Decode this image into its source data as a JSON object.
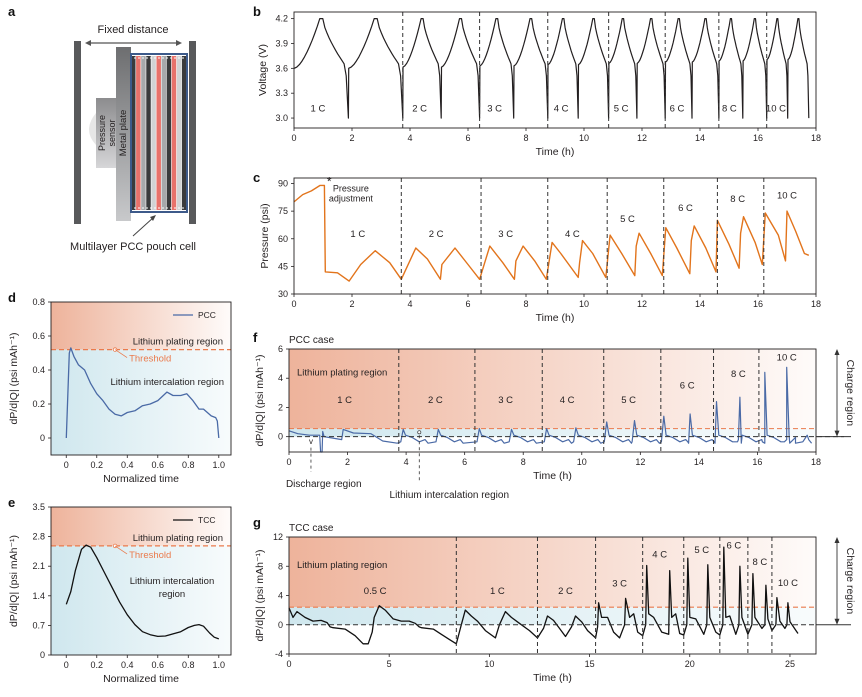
{
  "figure": {
    "panel_labels": [
      "a",
      "b",
      "c",
      "d",
      "e",
      "f",
      "g"
    ],
    "colors": {
      "pcc_line": "#4a6aa6",
      "tcc_line": "#111111",
      "pressure_line": "#e2741c",
      "threshold": "#ea7a4c",
      "plating_fill": "#eeb39b",
      "intercalation_fill": "#cfe7ee",
      "dashed_divider": "#333333"
    }
  },
  "schematic": {
    "title": "Fixed distance",
    "sensor_label_1": "Pressure",
    "sensor_label_2": "sensor",
    "plate_label": "Metal plate",
    "cell_label": "Multilayer PCC pouch cell"
  },
  "chart_data": [
    {
      "id": "b",
      "type": "line",
      "title": "",
      "xlabel": "Time (h)",
      "ylabel": "Voltage (V)",
      "xlim": [
        0,
        18
      ],
      "ylim": [
        2.88,
        4.28
      ],
      "xticks": [
        0,
        2,
        4,
        6,
        8,
        10,
        12,
        14,
        16,
        18
      ],
      "yticks": [
        3.0,
        3.3,
        3.6,
        3.9,
        4.2
      ],
      "ytick_labels": [
        "3.0",
        "3.3",
        "3.6",
        "3.9",
        "4.2"
      ],
      "segment_boundaries": [
        0,
        3.75,
        6.4,
        8.75,
        10.85,
        12.8,
        14.65,
        16.3,
        17.75
      ],
      "rate_labels": [
        "1 C",
        "2 C",
        "3 C",
        "4 C",
        "5 C",
        "6 C",
        "8 C",
        "10 C"
      ],
      "series": [
        {
          "name": "Voltage",
          "v_min": 3.0,
          "v_max": 4.2,
          "v_start": 3.6,
          "cycles_per_rate": 2
        }
      ]
    },
    {
      "id": "c",
      "type": "line",
      "xlabel": "Time (h)",
      "ylabel": "Pressure (psi)",
      "xlim": [
        0,
        18
      ],
      "ylim": [
        30,
        93
      ],
      "xticks": [
        0,
        2,
        4,
        6,
        8,
        10,
        12,
        14,
        16,
        18
      ],
      "yticks": [
        30,
        45,
        60,
        75,
        90
      ],
      "annotation": {
        "marker": "*",
        "line1": "Pressure",
        "line2": "adjustment",
        "x": 1.1,
        "y": 90
      },
      "segment_boundaries": [
        3.7,
        6.45,
        8.75,
        10.8,
        12.75,
        14.6,
        16.2
      ],
      "rate_labels": [
        "1 C",
        "2 C",
        "3 C",
        "4 C",
        "5 C",
        "6 C",
        "8 C",
        "10 C"
      ],
      "rate_label_positions": [
        [
          2.2,
          61
        ],
        [
          4.9,
          61
        ],
        [
          7.3,
          61
        ],
        [
          9.6,
          61
        ],
        [
          11.5,
          69
        ],
        [
          13.5,
          75
        ],
        [
          15.3,
          80
        ],
        [
          17.0,
          82
        ]
      ],
      "series": [
        {
          "name": "Pressure",
          "x": [
            0,
            0.3,
            0.6,
            0.9,
            1.05,
            1.08,
            1.1,
            1.5,
            1.9,
            2.3,
            2.8,
            3.3,
            3.7,
            4.2,
            4.6,
            5.05,
            5.1,
            5.55,
            6.0,
            6.4,
            6.75,
            7.2,
            7.6,
            7.65,
            7.9,
            8.3,
            8.7,
            8.9,
            9.2,
            9.8,
            9.85,
            9.95,
            10.3,
            10.75,
            10.9,
            11.3,
            11.75,
            11.8,
            11.9,
            12.3,
            12.7,
            12.82,
            13.2,
            13.65,
            13.7,
            13.8,
            14.2,
            14.55,
            14.6,
            15.0,
            15.35,
            15.4,
            15.5,
            15.9,
            16.15,
            16.25,
            16.7,
            16.95,
            17.0,
            17.3,
            17.6,
            17.75
          ],
          "y": [
            80,
            84,
            86,
            89,
            89,
            42,
            42,
            41.5,
            37,
            46,
            53.5,
            47,
            38,
            55,
            49,
            38,
            46,
            55,
            46,
            38,
            56,
            47,
            38,
            48,
            56,
            48,
            38,
            58,
            52,
            39,
            47,
            59,
            52,
            39,
            62,
            52,
            40,
            56,
            63,
            52,
            40,
            66,
            55,
            41,
            59,
            67,
            55,
            42,
            70,
            57,
            44,
            63,
            72,
            58,
            46,
            74,
            62,
            48,
            75,
            64,
            52,
            51
          ]
        }
      ]
    },
    {
      "id": "d",
      "type": "line",
      "xlabel": "Normalized time",
      "ylabel": "dP/d|Q| (psi mAh⁻¹)",
      "xlim": [
        -0.1,
        1.08
      ],
      "ylim": [
        -0.1,
        0.8
      ],
      "xticks": [
        0,
        0.2,
        0.4,
        0.6,
        0.8,
        1.0
      ],
      "xtick_labels": [
        "0",
        "0.2",
        "0.4",
        "0.6",
        "0.8",
        "1.0"
      ],
      "yticks": [
        0,
        0.2,
        0.4,
        0.6,
        0.8
      ],
      "ytick_labels": [
        "0",
        "0.2",
        "0.4",
        "0.6",
        "0.8"
      ],
      "threshold": 0.52,
      "legend": {
        "label": "PCC",
        "placement": "top-right"
      },
      "region_labels": {
        "plating": "Lithium plating region",
        "intercalation": "Lithium intercalation region",
        "threshold": "Threshold"
      },
      "series": [
        {
          "name": "PCC",
          "x": [
            0,
            0.02,
            0.03,
            0.05,
            0.08,
            0.12,
            0.16,
            0.2,
            0.24,
            0.28,
            0.32,
            0.36,
            0.4,
            0.45,
            0.5,
            0.55,
            0.6,
            0.66,
            0.7,
            0.75,
            0.79,
            0.83,
            0.87,
            0.9,
            0.95,
            0.98,
            0.99,
            1.0
          ],
          "y": [
            0,
            0.5,
            0.53,
            0.48,
            0.43,
            0.4,
            0.32,
            0.26,
            0.22,
            0.17,
            0.14,
            0.13,
            0.15,
            0.16,
            0.19,
            0.2,
            0.22,
            0.27,
            0.25,
            0.25,
            0.26,
            0.22,
            0.17,
            0.17,
            0.13,
            0.12,
            0.1,
            0
          ]
        }
      ]
    },
    {
      "id": "e",
      "type": "line",
      "xlabel": "Normalized time",
      "ylabel": "dP/d|Q| (psi mAh⁻¹)",
      "xlim": [
        -0.1,
        1.08
      ],
      "ylim": [
        0,
        3.5
      ],
      "xticks": [
        0,
        0.2,
        0.4,
        0.6,
        0.8,
        1.0
      ],
      "xtick_labels": [
        "0",
        "0.2",
        "0.4",
        "0.6",
        "0.8",
        "1.0"
      ],
      "yticks": [
        0,
        0.7,
        1.4,
        2.1,
        2.8,
        3.5
      ],
      "ytick_labels": [
        "0",
        "0.7",
        "1.4",
        "2.1",
        "2.8",
        "3.5"
      ],
      "threshold": 2.58,
      "legend": {
        "label": "TCC",
        "placement": "top-right"
      },
      "region_labels": {
        "plating": "Lithium plating region",
        "intercalation_1": "Lithium intercalation",
        "intercalation_2": "region",
        "threshold": "Threshold"
      },
      "series": [
        {
          "name": "TCC",
          "x": [
            0,
            0.03,
            0.06,
            0.1,
            0.13,
            0.16,
            0.2,
            0.25,
            0.3,
            0.35,
            0.4,
            0.45,
            0.5,
            0.55,
            0.6,
            0.65,
            0.7,
            0.75,
            0.8,
            0.84,
            0.87,
            0.9,
            0.94,
            0.97,
            1.0
          ],
          "y": [
            1.2,
            1.5,
            2.0,
            2.5,
            2.6,
            2.55,
            2.3,
            1.95,
            1.6,
            1.25,
            0.95,
            0.72,
            0.55,
            0.48,
            0.44,
            0.45,
            0.5,
            0.55,
            0.65,
            0.7,
            0.72,
            0.68,
            0.52,
            0.42,
            0.38
          ]
        }
      ]
    },
    {
      "id": "f",
      "type": "line",
      "title": "PCC case",
      "xlabel": "Time (h)",
      "ylabel": "dP/d|Q| (psi mAh⁻¹)",
      "xlim": [
        0,
        18
      ],
      "ylim": [
        -1.05,
        6
      ],
      "xticks": [
        0,
        2,
        4,
        6,
        8,
        10,
        12,
        14,
        16,
        18
      ],
      "yticks": [
        0,
        2,
        4,
        6
      ],
      "threshold": 0.55,
      "segment_boundaries": [
        3.75,
        6.35,
        8.65,
        10.75,
        12.7,
        14.5,
        16.05
      ],
      "rate_labels": [
        "1 C",
        "2 C",
        "3 C",
        "4 C",
        "5 C",
        "6 C",
        "8 C",
        "10 C"
      ],
      "rate_label_positions": [
        [
          1.9,
          2.3
        ],
        [
          5.0,
          2.3
        ],
        [
          7.4,
          2.3
        ],
        [
          9.5,
          2.3
        ],
        [
          11.6,
          2.3
        ],
        [
          13.6,
          3.3
        ],
        [
          15.35,
          4.1
        ],
        [
          17.0,
          5.2
        ]
      ],
      "region_labels": {
        "plating": "Lithium plating region",
        "discharge": "Discharge region",
        "intercalation": "Lithium intercalation region",
        "charge": "Charge region"
      },
      "peaks": [
        {
          "x": 1.85,
          "y": 0.5
        },
        {
          "x": 3.9,
          "y": 0.5
        },
        {
          "x": 5.1,
          "y": 0.5
        },
        {
          "x": 6.5,
          "y": 0.55
        },
        {
          "x": 7.6,
          "y": 0.5
        },
        {
          "x": 8.8,
          "y": 0.55
        },
        {
          "x": 9.8,
          "y": 0.6
        },
        {
          "x": 10.85,
          "y": 1.0
        },
        {
          "x": 11.8,
          "y": 1.1
        },
        {
          "x": 12.8,
          "y": 1.4
        },
        {
          "x": 13.7,
          "y": 1.55
        },
        {
          "x": 14.6,
          "y": 2.4
        },
        {
          "x": 15.4,
          "y": 2.7
        },
        {
          "x": 16.25,
          "y": 4.4
        },
        {
          "x": 17.0,
          "y": 4.75
        }
      ],
      "series": [
        {
          "name": "PCC",
          "baseline_low": -0.45,
          "discharge_dip": {
            "x": 1.1,
            "y": -1.05
          }
        }
      ]
    },
    {
      "id": "g",
      "type": "line",
      "title": "TCC case",
      "xlabel": "Time (h)",
      "ylabel": "dP/d|Q| (psi mAh⁻¹)",
      "xlim": [
        0,
        26.3
      ],
      "ylim": [
        -4,
        12
      ],
      "xticks": [
        0,
        5,
        10,
        15,
        20,
        25
      ],
      "yticks": [
        -4,
        0,
        4,
        8,
        12
      ],
      "threshold": 2.4,
      "segment_boundaries": [
        8.35,
        12.4,
        15.3,
        17.65,
        19.7,
        21.5,
        22.9,
        24.1
      ],
      "rate_labels": [
        "0.5 C",
        "1 C",
        "2 C",
        "3 C",
        "4 C",
        "5 C",
        "6 C",
        "8 C",
        "10 C"
      ],
      "rate_label_positions": [
        [
          4.3,
          4.2
        ],
        [
          10.4,
          4.2
        ],
        [
          13.8,
          4.2
        ],
        [
          16.5,
          5.2
        ],
        [
          18.5,
          9.2
        ],
        [
          20.6,
          9.8
        ],
        [
          22.2,
          10.4
        ],
        [
          23.5,
          8.2
        ],
        [
          24.9,
          5.3
        ]
      ],
      "region_labels": {
        "plating": "Lithium plating region",
        "charge": "Charge region"
      },
      "series": [
        {
          "name": "TCC",
          "x": [
            0,
            0.2,
            0.4,
            0.8,
            1.2,
            1.6,
            1.9,
            2.05,
            2.2,
            2.8,
            3.3,
            3.7,
            3.95,
            4.15,
            4.25,
            4.5,
            4.8,
            5.2,
            5.6,
            6.0,
            6.3,
            6.5,
            6.6,
            7.2,
            7.6,
            8.0,
            8.35,
            8.6,
            8.8,
            9.1,
            9.4,
            9.8,
            10.3,
            10.5,
            10.8,
            11.1,
            11.5,
            12.0,
            12.4,
            12.7,
            12.9,
            13.2,
            13.5,
            13.8,
            14.1,
            14.3,
            14.6,
            14.9,
            15.3,
            15.4,
            15.45,
            15.6,
            15.9,
            16.2,
            16.5,
            16.75,
            16.8,
            17.0,
            17.2,
            17.4,
            17.65,
            17.8,
            17.85,
            17.95,
            18.2,
            18.6,
            18.95,
            19.0,
            19.1,
            19.3,
            19.5,
            19.7,
            19.85,
            19.9,
            20.0,
            20.3,
            20.7,
            20.85,
            20.9,
            21.0,
            21.3,
            21.5,
            21.65,
            21.7,
            21.8,
            22.0,
            22.3,
            22.45,
            22.5,
            22.6,
            22.9,
            23.1,
            23.15,
            23.25,
            23.6,
            23.75,
            23.8,
            23.9,
            24.1,
            24.3,
            24.35,
            24.5,
            24.75,
            24.85,
            24.9,
            25.0,
            25.3,
            25.4
          ],
          "y": [
            2.3,
            1.0,
            1.8,
            1.0,
            0.5,
            0.6,
            0.3,
            -0.3,
            -0.4,
            -0.6,
            -1.5,
            -2.6,
            -2.6,
            -1.0,
            1.0,
            2.6,
            2.0,
            0.8,
            0.5,
            0.5,
            0.2,
            -0.3,
            -0.4,
            -0.6,
            -1.3,
            -2.0,
            -2.6,
            0.0,
            2.0,
            1.2,
            0.5,
            -0.8,
            -1.8,
            0.0,
            1.8,
            1.0,
            0.2,
            -0.8,
            -1.8,
            -0.5,
            1.2,
            0.6,
            -0.5,
            -1.6,
            -0.3,
            1.2,
            0.4,
            -0.8,
            -1.8,
            -0.3,
            3.0,
            1.0,
            1.0,
            -1.0,
            -1.8,
            0.0,
            3.6,
            1.0,
            1.5,
            -1.0,
            -1.5,
            0.0,
            8.1,
            1.5,
            1.0,
            -1.0,
            -1.3,
            7.4,
            1.0,
            1.5,
            -1.2,
            -1.4,
            0.0,
            9.1,
            1.0,
            0.8,
            -1.3,
            0.0,
            8.2,
            1.0,
            -1.0,
            -1.4,
            0.0,
            10.6,
            1.0,
            1.2,
            -1.3,
            0.0,
            8.0,
            1.0,
            -1.3,
            0.0,
            7.0,
            1.0,
            -0.5,
            0.0,
            5.4,
            0.8,
            -0.8,
            0.0,
            3.7,
            0.5,
            -0.5,
            0.0,
            3.0,
            0.4,
            -0.8,
            -1.2
          ]
        }
      ]
    }
  ]
}
